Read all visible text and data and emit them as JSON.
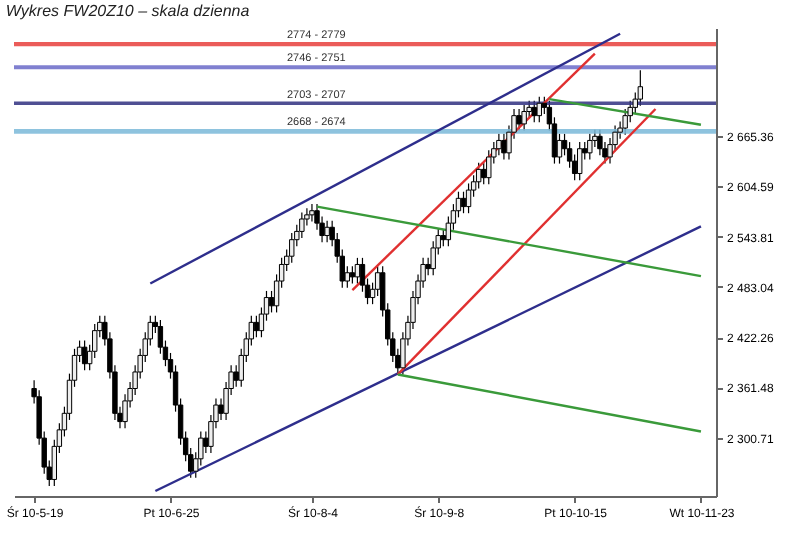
{
  "chart_data": {
    "type": "candlestick",
    "title": "Wykres FW20Z10 – skala dzienna",
    "categories": [
      "Śr 10-5-19",
      null,
      null,
      null,
      null,
      null,
      null,
      null,
      null,
      null,
      null,
      null,
      null,
      null,
      null,
      null,
      null,
      null,
      null,
      null,
      null,
      null,
      null,
      null,
      null,
      null,
      null,
      "Pt 10-6-25",
      null,
      null,
      null,
      null,
      null,
      null,
      null,
      null,
      null,
      null,
      null,
      null,
      null,
      null,
      null,
      null,
      null,
      null,
      null,
      null,
      null,
      null,
      null,
      null,
      null,
      null,
      null,
      "Śr 10-8-4",
      null,
      null,
      null,
      null,
      null,
      null,
      null,
      null,
      null,
      null,
      null,
      null,
      null,
      null,
      null,
      null,
      null,
      null,
      null,
      null,
      null,
      null,
      null,
      null,
      "Śr 10-9-8",
      null,
      null,
      null,
      null,
      null,
      null,
      null,
      null,
      null,
      null,
      null,
      null,
      null,
      null,
      null,
      null,
      null,
      null,
      null,
      null,
      null,
      null,
      null,
      null,
      null,
      null,
      "Pt 10-10-15",
      null,
      null,
      null,
      null,
      null,
      null,
      null,
      null,
      null,
      null,
      null,
      null,
      null,
      null,
      null,
      null,
      null,
      null,
      null,
      null,
      null,
      null,
      null,
      null,
      "Wt 10-11-23"
    ],
    "ohlc": [
      [
        2360,
        2370,
        2342,
        2350
      ],
      [
        2350,
        2358,
        2292,
        2300
      ],
      [
        2300,
        2308,
        2257,
        2265
      ],
      [
        2265,
        2273,
        2242,
        2250
      ],
      [
        2250,
        2298,
        2242,
        2290
      ],
      [
        2290,
        2318,
        2282,
        2310
      ],
      [
        2310,
        2338,
        2302,
        2330
      ],
      [
        2330,
        2378,
        2322,
        2370
      ],
      [
        2370,
        2408,
        2362,
        2400
      ],
      [
        2400,
        2418,
        2392,
        2410
      ],
      [
        2410,
        2418,
        2382,
        2390
      ],
      [
        2390,
        2413,
        2382,
        2405
      ],
      [
        2405,
        2438,
        2397,
        2430
      ],
      [
        2430,
        2448,
        2422,
        2440
      ],
      [
        2440,
        2448,
        2412,
        2420
      ],
      [
        2420,
        2428,
        2372,
        2380
      ],
      [
        2380,
        2388,
        2322,
        2330
      ],
      [
        2330,
        2338,
        2312,
        2320
      ],
      [
        2320,
        2353,
        2312,
        2345
      ],
      [
        2345,
        2368,
        2337,
        2360
      ],
      [
        2360,
        2388,
        2352,
        2380
      ],
      [
        2380,
        2408,
        2372,
        2400
      ],
      [
        2400,
        2428,
        2392,
        2420
      ],
      [
        2420,
        2448,
        2412,
        2440
      ],
      [
        2440,
        2448,
        2427,
        2435
      ],
      [
        2435,
        2443,
        2402,
        2410
      ],
      [
        2410,
        2418,
        2387,
        2395
      ],
      [
        2395,
        2403,
        2372,
        2380
      ],
      [
        2380,
        2388,
        2332,
        2340
      ],
      [
        2340,
        2348,
        2292,
        2300
      ],
      [
        2300,
        2308,
        2272,
        2280
      ],
      [
        2280,
        2288,
        2252,
        2260
      ],
      [
        2260,
        2283,
        2252,
        2275
      ],
      [
        2275,
        2308,
        2267,
        2300
      ],
      [
        2300,
        2308,
        2282,
        2290
      ],
      [
        2290,
        2328,
        2282,
        2320
      ],
      [
        2320,
        2348,
        2312,
        2340
      ],
      [
        2340,
        2348,
        2322,
        2330
      ],
      [
        2330,
        2368,
        2322,
        2360
      ],
      [
        2360,
        2388,
        2352,
        2380
      ],
      [
        2380,
        2388,
        2362,
        2370
      ],
      [
        2370,
        2408,
        2362,
        2400
      ],
      [
        2400,
        2428,
        2392,
        2420
      ],
      [
        2420,
        2448,
        2412,
        2440
      ],
      [
        2440,
        2448,
        2422,
        2430
      ],
      [
        2430,
        2458,
        2422,
        2450
      ],
      [
        2450,
        2478,
        2442,
        2470
      ],
      [
        2470,
        2478,
        2452,
        2460
      ],
      [
        2460,
        2498,
        2452,
        2490
      ],
      [
        2490,
        2518,
        2482,
        2510
      ],
      [
        2510,
        2528,
        2502,
        2520
      ],
      [
        2520,
        2548,
        2512,
        2540
      ],
      [
        2540,
        2558,
        2532,
        2550
      ],
      [
        2550,
        2573,
        2542,
        2565
      ],
      [
        2565,
        2578,
        2557,
        2570
      ],
      [
        2570,
        2583,
        2562,
        2575
      ],
      [
        2575,
        2583,
        2552,
        2560
      ],
      [
        2560,
        2568,
        2537,
        2545
      ],
      [
        2545,
        2563,
        2537,
        2555
      ],
      [
        2555,
        2563,
        2532,
        2540
      ],
      [
        2540,
        2548,
        2512,
        2520
      ],
      [
        2520,
        2528,
        2482,
        2490
      ],
      [
        2490,
        2508,
        2482,
        2500
      ],
      [
        2500,
        2508,
        2487,
        2495
      ],
      [
        2495,
        2518,
        2487,
        2510
      ],
      [
        2510,
        2518,
        2477,
        2485
      ],
      [
        2485,
        2493,
        2462,
        2470
      ],
      [
        2470,
        2488,
        2462,
        2480
      ],
      [
        2480,
        2508,
        2472,
        2500
      ],
      [
        2500,
        2508,
        2447,
        2455
      ],
      [
        2455,
        2463,
        2412,
        2420
      ],
      [
        2420,
        2428,
        2392,
        2400
      ],
      [
        2400,
        2408,
        2377,
        2385
      ],
      [
        2385,
        2428,
        2377,
        2420
      ],
      [
        2420,
        2448,
        2412,
        2440
      ],
      [
        2440,
        2478,
        2432,
        2470
      ],
      [
        2470,
        2498,
        2462,
        2490
      ],
      [
        2490,
        2518,
        2482,
        2510
      ],
      [
        2510,
        2518,
        2497,
        2505
      ],
      [
        2505,
        2538,
        2497,
        2530
      ],
      [
        2530,
        2553,
        2522,
        2545
      ],
      [
        2545,
        2553,
        2532,
        2540
      ],
      [
        2540,
        2568,
        2532,
        2560
      ],
      [
        2560,
        2583,
        2552,
        2575
      ],
      [
        2575,
        2598,
        2567,
        2590
      ],
      [
        2590,
        2598,
        2572,
        2580
      ],
      [
        2580,
        2608,
        2572,
        2600
      ],
      [
        2600,
        2618,
        2592,
        2610
      ],
      [
        2610,
        2633,
        2602,
        2625
      ],
      [
        2625,
        2633,
        2607,
        2615
      ],
      [
        2615,
        2648,
        2607,
        2640
      ],
      [
        2640,
        2658,
        2632,
        2650
      ],
      [
        2650,
        2668,
        2642,
        2660
      ],
      [
        2660,
        2668,
        2637,
        2645
      ],
      [
        2645,
        2678,
        2637,
        2670
      ],
      [
        2670,
        2698,
        2662,
        2690
      ],
      [
        2690,
        2698,
        2672,
        2680
      ],
      [
        2680,
        2703,
        2672,
        2695
      ],
      [
        2695,
        2708,
        2687,
        2700
      ],
      [
        2700,
        2708,
        2682,
        2690
      ],
      [
        2690,
        2713,
        2682,
        2705
      ],
      [
        2705,
        2713,
        2692,
        2700
      ],
      [
        2700,
        2708,
        2672,
        2680
      ],
      [
        2680,
        2688,
        2632,
        2640
      ],
      [
        2640,
        2668,
        2632,
        2660
      ],
      [
        2660,
        2668,
        2642,
        2650
      ],
      [
        2650,
        2658,
        2627,
        2635
      ],
      [
        2635,
        2643,
        2612,
        2620
      ],
      [
        2620,
        2658,
        2612,
        2650
      ],
      [
        2650,
        2658,
        2637,
        2645
      ],
      [
        2645,
        2668,
        2637,
        2660
      ],
      [
        2660,
        2673,
        2652,
        2665
      ],
      [
        2665,
        2673,
        2642,
        2650
      ],
      [
        2650,
        2658,
        2632,
        2640
      ],
      [
        2640,
        2663,
        2632,
        2655
      ],
      [
        2655,
        2678,
        2647,
        2670
      ],
      [
        2670,
        2683,
        2662,
        2675
      ],
      [
        2675,
        2698,
        2667,
        2690
      ],
      [
        2690,
        2708,
        2682,
        2700
      ],
      [
        2700,
        2718,
        2692,
        2710
      ],
      [
        2710,
        2745,
        2702,
        2725
      ],
      null,
      null,
      null,
      null,
      null,
      null,
      null,
      null,
      null,
      null,
      null,
      null
    ],
    "colors": [
      "#000000",
      "#000000",
      "#000000",
      "#000000",
      "#eeeeee",
      "#eeeeee",
      "#eeeeee",
      "#eeeeee",
      "#eeeeee",
      "#eeeeee",
      "#000000",
      "#eeeeee",
      "#eeeeee",
      "#eeeeee",
      "#000000",
      "#000000",
      "#000000",
      "#000000",
      "#eeeeee",
      "#eeeeee",
      "#eeeeee",
      "#eeeeee",
      "#eeeeee",
      "#eeeeee",
      "#000000",
      "#000000",
      "#000000",
      "#000000",
      "#000000",
      "#000000",
      "#000000",
      "#000000",
      "#eeeeee",
      "#eeeeee",
      "#000000",
      "#eeeeee",
      "#eeeeee",
      "#000000",
      "#eeeeee",
      "#eeeeee",
      "#000000",
      "#eeeeee",
      "#eeeeee",
      "#eeeeee",
      "#000000",
      "#eeeeee",
      "#eeeeee",
      "#000000",
      "#eeeeee",
      "#eeeeee",
      "#eeeeee",
      "#eeeeee",
      "#eeeeee",
      "#eeeeee",
      "#eeeeee",
      "#eeeeee",
      "#000000",
      "#000000",
      "#eeeeee",
      "#000000",
      "#000000",
      "#000000",
      "#eeeeee",
      "#000000",
      "#eeeeee",
      "#000000",
      "#000000",
      "#eeeeee",
      "#eeeeee",
      "#000000",
      "#000000",
      "#000000",
      "#000000",
      "#eeeeee",
      "#eeeeee",
      "#eeeeee",
      "#eeeeee",
      "#eeeeee",
      "#000000",
      "#eeeeee",
      "#eeeeee",
      "#000000",
      "#eeeeee",
      "#eeeeee",
      "#eeeeee",
      "#000000",
      "#eeeeee",
      "#eeeeee",
      "#eeeeee",
      "#000000",
      "#eeeeee",
      "#eeeeee",
      "#eeeeee",
      "#000000",
      "#eeeeee",
      "#eeeeee",
      "#000000",
      "#eeeeee",
      "#eeeeee",
      "#000000",
      "#eeeeee",
      "#000000",
      "#000000",
      "#000000",
      "#eeeeee",
      "#000000",
      "#000000",
      "#000000",
      "#eeeeee",
      "#000000",
      "#eeeeee",
      "#eeeeee",
      "#000000",
      "#000000",
      "#eeeeee",
      "#eeeeee",
      "#eeeeee",
      "#eeeeee",
      "#eeeeee",
      "#eeeeee",
      "#eeeeee",
      null,
      null,
      null,
      null,
      null,
      null,
      null,
      null,
      null,
      null,
      null,
      null
    ],
    "series": [
      {
        "type": "line",
        "color": "#2e2e8c",
        "values": [
          null,
          null,
          null,
          null,
          null,
          null,
          null,
          null,
          null,
          null,
          null,
          null,
          null,
          null,
          null,
          null,
          null,
          null,
          null,
          null,
          null,
          null,
          null,
          2487,
          null,
          null,
          null,
          null,
          null,
          null,
          null,
          null,
          null,
          null,
          null,
          null,
          null,
          null,
          null,
          null,
          null,
          null,
          null,
          null,
          null,
          null,
          null,
          null,
          null,
          null,
          null,
          null,
          null,
          null,
          null,
          null,
          null,
          null,
          null,
          null,
          null,
          null,
          null,
          null,
          null,
          null,
          null,
          null,
          null,
          null,
          null,
          null,
          null,
          null,
          null,
          null,
          null,
          null,
          null,
          null,
          null,
          null,
          null,
          null,
          null,
          null,
          null,
          null,
          null,
          null,
          null,
          null,
          null,
          null,
          null,
          null,
          null,
          null,
          null,
          null,
          null,
          null,
          null,
          null,
          null,
          null,
          null,
          null,
          null,
          null,
          null,
          null,
          null,
          null,
          null,
          null,
          2789,
          null,
          null,
          null,
          null,
          null,
          null,
          null,
          null,
          null,
          null,
          null,
          null,
          null,
          null,
          null,
          null
        ]
      },
      {
        "type": "line",
        "color": "#2e2e8c",
        "values": [
          null,
          null,
          null,
          null,
          null,
          null,
          null,
          null,
          null,
          null,
          null,
          null,
          null,
          null,
          null,
          null,
          null,
          null,
          null,
          null,
          null,
          null,
          null,
          null,
          2236,
          null,
          null,
          null,
          null,
          null,
          null,
          null,
          null,
          null,
          null,
          null,
          null,
          null,
          null,
          null,
          null,
          null,
          null,
          null,
          null,
          null,
          null,
          null,
          null,
          null,
          null,
          null,
          null,
          null,
          null,
          null,
          null,
          null,
          null,
          null,
          null,
          null,
          null,
          null,
          null,
          null,
          null,
          null,
          null,
          null,
          null,
          null,
          null,
          null,
          null,
          null,
          null,
          null,
          null,
          null,
          null,
          null,
          null,
          null,
          null,
          null,
          null,
          null,
          null,
          null,
          null,
          null,
          null,
          null,
          null,
          null,
          null,
          null,
          null,
          null,
          null,
          null,
          null,
          null,
          null,
          null,
          null,
          null,
          null,
          null,
          null,
          null,
          null,
          null,
          null,
          null,
          null,
          null,
          null,
          null,
          null,
          null,
          null,
          null,
          null,
          null,
          null,
          null,
          null,
          null,
          null,
          null,
          2556
        ]
      },
      {
        "type": "line",
        "color": "#e03030",
        "values": [
          null,
          null,
          null,
          null,
          null,
          null,
          null,
          null,
          null,
          null,
          null,
          null,
          null,
          null,
          null,
          null,
          null,
          null,
          null,
          null,
          null,
          null,
          null,
          null,
          null,
          null,
          null,
          null,
          null,
          null,
          null,
          null,
          null,
          null,
          null,
          null,
          null,
          null,
          null,
          null,
          null,
          null,
          null,
          null,
          null,
          null,
          null,
          null,
          null,
          null,
          null,
          null,
          null,
          null,
          null,
          null,
          null,
          null,
          null,
          null,
          null,
          null,
          null,
          2479,
          null,
          null,
          null,
          null,
          null,
          null,
          null,
          null,
          null,
          null,
          null,
          null,
          null,
          null,
          null,
          null,
          null,
          null,
          null,
          null,
          null,
          null,
          null,
          null,
          null,
          null,
          null,
          null,
          null,
          null,
          null,
          null,
          null,
          null,
          null,
          null,
          null,
          null,
          null,
          null,
          null,
          null,
          null,
          null,
          null,
          null,
          null,
          2765,
          null,
          null,
          null,
          null,
          null,
          null,
          null,
          null,
          null,
          null,
          null,
          null,
          null,
          null,
          null,
          null,
          null,
          null,
          null,
          null,
          null
        ]
      },
      {
        "type": "line",
        "color": "#e03030",
        "values": [
          null,
          null,
          null,
          null,
          null,
          null,
          null,
          null,
          null,
          null,
          null,
          null,
          null,
          null,
          null,
          null,
          null,
          null,
          null,
          null,
          null,
          null,
          null,
          null,
          null,
          null,
          null,
          null,
          null,
          null,
          null,
          null,
          null,
          null,
          null,
          null,
          null,
          null,
          null,
          null,
          null,
          null,
          null,
          null,
          null,
          null,
          null,
          null,
          null,
          null,
          null,
          null,
          null,
          null,
          null,
          null,
          null,
          null,
          null,
          null,
          null,
          null,
          null,
          null,
          null,
          null,
          null,
          null,
          null,
          null,
          null,
          null,
          2377,
          null,
          null,
          null,
          null,
          null,
          null,
          null,
          null,
          null,
          null,
          null,
          null,
          null,
          null,
          null,
          null,
          null,
          null,
          null,
          null,
          null,
          null,
          null,
          null,
          null,
          null,
          null,
          null,
          null,
          null,
          null,
          null,
          null,
          null,
          null,
          null,
          null,
          null,
          null,
          null,
          null,
          null,
          null,
          null,
          null,
          null,
          null,
          null,
          null,
          null,
          2698,
          null,
          null,
          null,
          null,
          null,
          null,
          null,
          null,
          null
        ]
      },
      {
        "type": "line",
        "color": "#3a9a3a",
        "values": [
          null,
          null,
          null,
          null,
          null,
          null,
          null,
          null,
          null,
          null,
          null,
          null,
          null,
          null,
          null,
          null,
          null,
          null,
          null,
          null,
          null,
          null,
          null,
          null,
          null,
          null,
          null,
          null,
          null,
          null,
          null,
          null,
          null,
          null,
          null,
          null,
          null,
          null,
          null,
          null,
          null,
          null,
          null,
          null,
          null,
          null,
          null,
          null,
          null,
          null,
          null,
          null,
          null,
          null,
          null,
          null,
          2580,
          null,
          null,
          null,
          null,
          null,
          null,
          null,
          null,
          null,
          null,
          null,
          null,
          null,
          null,
          null,
          null,
          null,
          null,
          null,
          null,
          null,
          null,
          null,
          null,
          null,
          null,
          null,
          null,
          null,
          null,
          null,
          null,
          null,
          null,
          null,
          null,
          null,
          null,
          null,
          null,
          null,
          null,
          null,
          null,
          null,
          null,
          null,
          null,
          null,
          null,
          null,
          null,
          null,
          null,
          null,
          null,
          null,
          null,
          null,
          null,
          null,
          null,
          null,
          null,
          null,
          null,
          null,
          null,
          null,
          null,
          null,
          null,
          null,
          null,
          null,
          2496
        ]
      },
      {
        "type": "line",
        "color": "#3a9a3a",
        "values": [
          null,
          null,
          null,
          null,
          null,
          null,
          null,
          null,
          null,
          null,
          null,
          null,
          null,
          null,
          null,
          null,
          null,
          null,
          null,
          null,
          null,
          null,
          null,
          null,
          null,
          null,
          null,
          null,
          null,
          null,
          null,
          null,
          null,
          null,
          null,
          null,
          null,
          null,
          null,
          null,
          null,
          null,
          null,
          null,
          null,
          null,
          null,
          null,
          null,
          null,
          null,
          null,
          null,
          null,
          null,
          null,
          null,
          null,
          null,
          null,
          null,
          null,
          null,
          null,
          null,
          null,
          null,
          null,
          null,
          null,
          null,
          null,
          2377,
          null,
          null,
          null,
          null,
          null,
          null,
          null,
          null,
          null,
          null,
          null,
          null,
          null,
          null,
          null,
          null,
          null,
          null,
          null,
          null,
          null,
          null,
          null,
          null,
          null,
          null,
          null,
          null,
          null,
          null,
          null,
          null,
          null,
          null,
          null,
          null,
          null,
          null,
          null,
          null,
          null,
          null,
          null,
          null,
          null,
          null,
          null,
          null,
          null,
          null,
          null,
          null,
          null,
          null,
          null,
          null,
          null,
          null,
          null,
          2308
        ]
      },
      {
        "type": "line",
        "color": "#3a9a3a",
        "values": [
          null,
          null,
          null,
          null,
          null,
          null,
          null,
          null,
          null,
          null,
          null,
          null,
          null,
          null,
          null,
          null,
          null,
          null,
          null,
          null,
          null,
          null,
          null,
          null,
          null,
          null,
          null,
          null,
          null,
          null,
          null,
          null,
          null,
          null,
          null,
          null,
          null,
          null,
          null,
          null,
          null,
          null,
          null,
          null,
          null,
          null,
          null,
          null,
          null,
          null,
          null,
          null,
          null,
          null,
          null,
          null,
          null,
          null,
          null,
          null,
          null,
          null,
          null,
          null,
          null,
          null,
          null,
          null,
          null,
          null,
          null,
          null,
          null,
          null,
          null,
          null,
          null,
          null,
          null,
          null,
          null,
          null,
          null,
          null,
          null,
          null,
          null,
          null,
          null,
          null,
          null,
          null,
          null,
          null,
          null,
          null,
          null,
          null,
          null,
          null,
          null,
          null,
          2710,
          null,
          null,
          null,
          null,
          null,
          null,
          null,
          null,
          null,
          null,
          null,
          null,
          null,
          null,
          null,
          null,
          null,
          null,
          null,
          null,
          null,
          null,
          null,
          null,
          null,
          null,
          null,
          null,
          null,
          2679
        ]
      }
    ],
    "bands": [
      {
        "axis": "y",
        "from": 2774,
        "to": 2779,
        "label": "2774 - 2779",
        "color": "#e8403c"
      },
      {
        "axis": "y",
        "from": 2746,
        "to": 2751,
        "label": "2746 - 2751",
        "color": "#6a6ac8"
      },
      {
        "axis": "y",
        "from": 2703,
        "to": 2707,
        "label": "2703 - 2707",
        "color": "#303080"
      },
      {
        "axis": "y",
        "from": 2668,
        "to": 2674,
        "label": "2668 - 2674",
        "color": "#7ab8d8"
      }
    ],
    "ylim": [
      2230,
      2796
    ],
    "yticks": [
      {
        "value": 2300.71,
        "label": "2 300.71"
      },
      {
        "value": 2361.48,
        "label": "2 361.48"
      },
      {
        "value": 2422.26,
        "label": "2 422.26"
      },
      {
        "value": 2483.04,
        "label": "2 483.04"
      },
      {
        "value": 2543.81,
        "label": "2 543.81"
      },
      {
        "value": 2604.59,
        "label": "2 604.59"
      },
      {
        "value": 2665.36,
        "label": "2 665.36"
      }
    ],
    "grid": false
  }
}
